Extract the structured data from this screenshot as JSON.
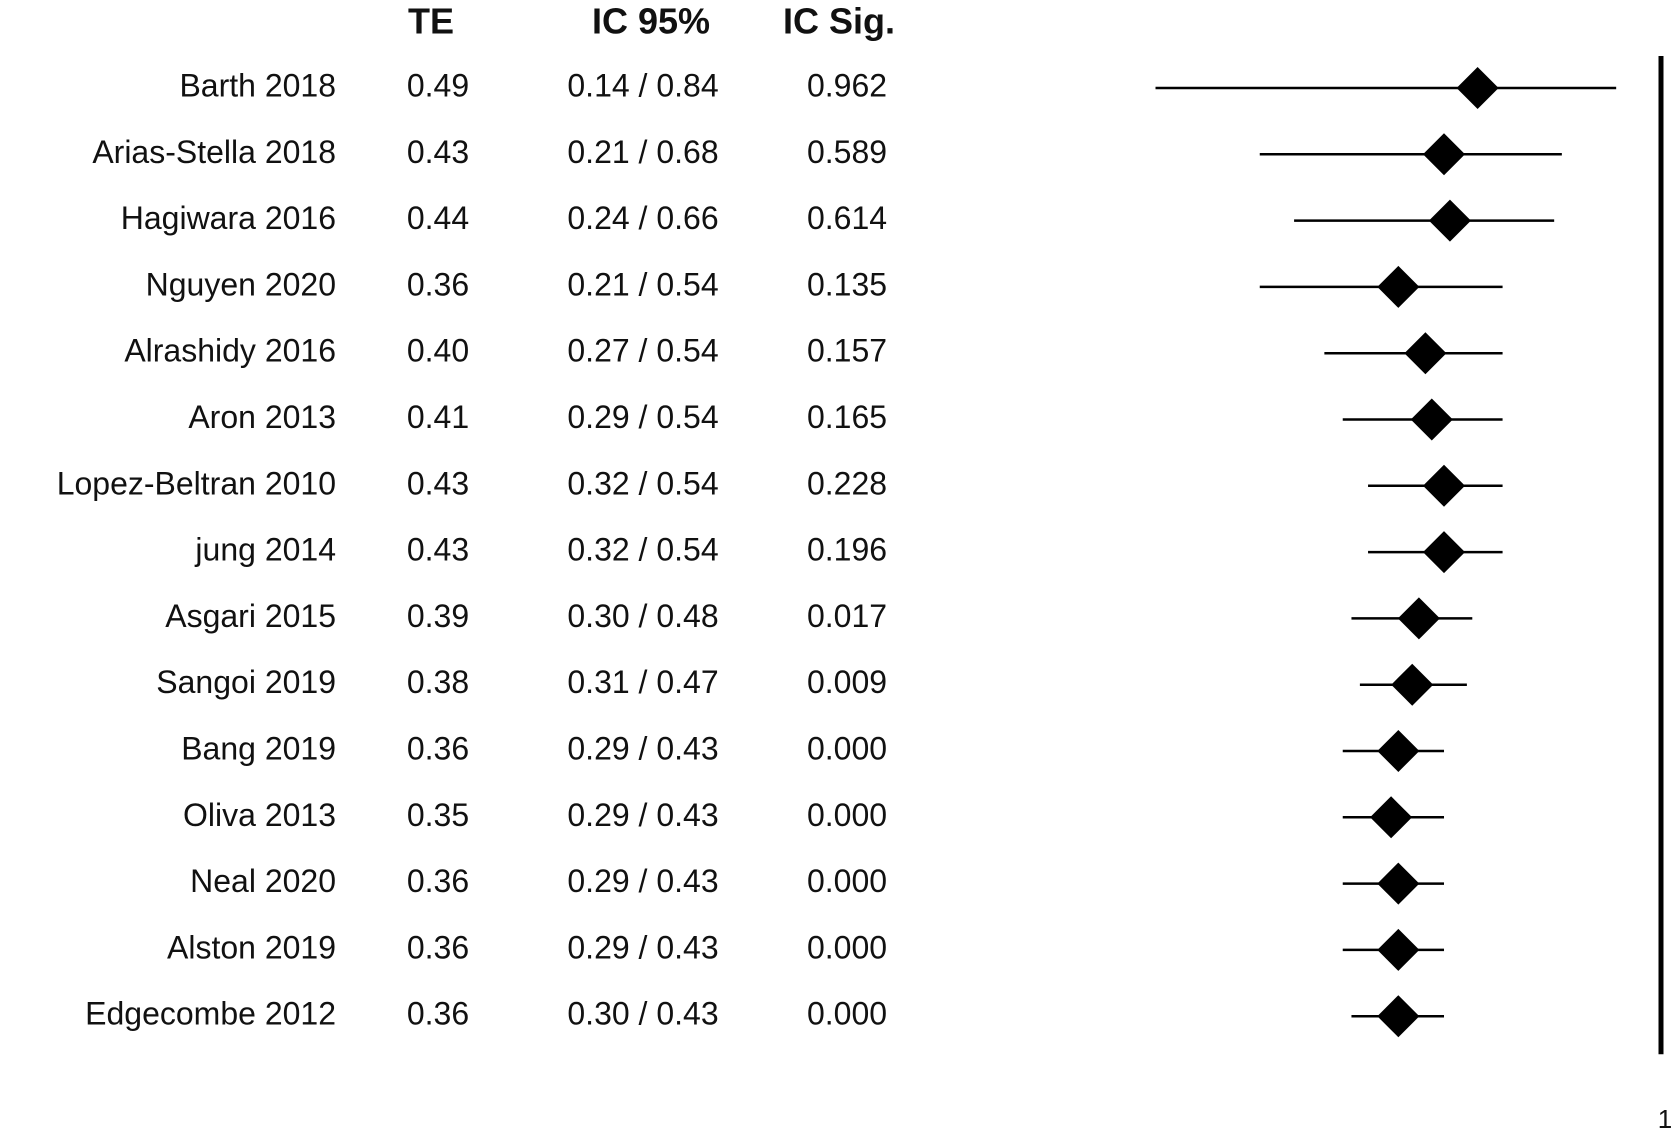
{
  "chart_data": {
    "type": "forest",
    "columns": [
      "TE",
      "IC 95%",
      "IC Sig."
    ],
    "categories": [
      "Barth 2018",
      "Arias-Stella 2018",
      "Hagiwara 2016",
      "Nguyen 2020",
      "Alrashidy 2016",
      "Aron 2013",
      "Lopez-Beltran 2010",
      "jung 2014",
      "Asgari 2015",
      "Sangoi 2019",
      "Bang 2019",
      "Oliva 2013",
      "Neal 2020",
      "Alston 2019",
      "Edgecombe 2012"
    ],
    "values": [
      0.49,
      0.43,
      0.44,
      0.36,
      0.4,
      0.41,
      0.43,
      0.43,
      0.39,
      0.38,
      0.36,
      0.35,
      0.36,
      0.36,
      0.36
    ],
    "value_labels": [
      "0.49",
      "0.43",
      "0.44",
      "0.36",
      "0.40",
      "0.41",
      "0.43",
      "0.43",
      "0.39",
      "0.38",
      "0.36",
      "0.35",
      "0.36",
      "0.36",
      "0.36"
    ],
    "lower": [
      0.14,
      0.21,
      0.24,
      0.21,
      0.27,
      0.29,
      0.32,
      0.32,
      0.3,
      0.31,
      0.29,
      0.29,
      0.29,
      0.29,
      0.3
    ],
    "upper": [
      0.84,
      0.68,
      0.66,
      0.54,
      0.54,
      0.54,
      0.54,
      0.54,
      0.48,
      0.47,
      0.43,
      0.43,
      0.43,
      0.43,
      0.43
    ],
    "ci_labels": [
      "0.14 / 0.84",
      "0.21 / 0.68",
      "0.24 / 0.66",
      "0.21 / 0.54",
      "0.27 / 0.54",
      "0.29 / 0.54",
      "0.32 / 0.54",
      "0.32 / 0.54",
      "0.30 / 0.48",
      "0.31 / 0.47",
      "0.29 / 0.43",
      "0.29 / 0.43",
      "0.29 / 0.43",
      "0.29 / 0.43",
      "0.30 / 0.43"
    ],
    "sig": [
      "0.962",
      "0.589",
      "0.614",
      "0.135",
      "0.157",
      "0.165",
      "0.228",
      "0.196",
      "0.017",
      "0.009",
      "0.000",
      "0.000",
      "0.000",
      "0.000",
      "0.000"
    ],
    "xlim": [
      0.1,
      1
    ],
    "xticks": [
      1
    ],
    "log_scale": true,
    "color": "#000000"
  }
}
